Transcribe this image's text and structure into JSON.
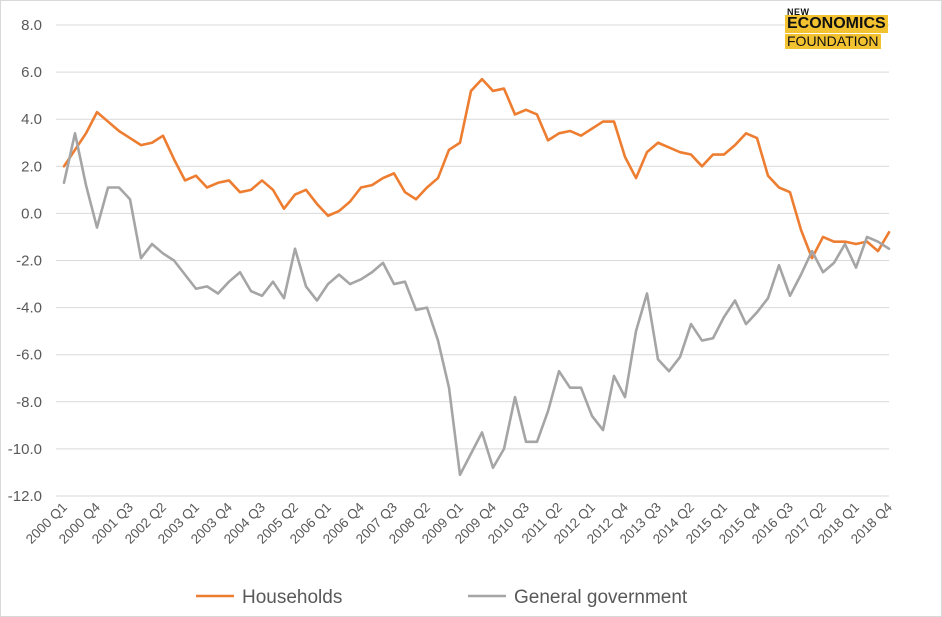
{
  "logo": {
    "line1": "NEW",
    "line2": "ECONOMICS",
    "line3": "FOUNDATION"
  },
  "chart_data": {
    "type": "line",
    "title": "",
    "xlabel": "",
    "ylabel": "",
    "ylim": [
      -12,
      8
    ],
    "yticks": [
      "8.0",
      "6.0",
      "4.0",
      "2.0",
      "0.0",
      "-2.0",
      "-4.0",
      "-6.0",
      "-8.0",
      "-10.0",
      "-12.0"
    ],
    "ytick_values": [
      8,
      6,
      4,
      2,
      0,
      -2,
      -4,
      -6,
      -8,
      -10,
      -12
    ],
    "grid": true,
    "legend_position": "bottom",
    "x": [
      "2000 Q1",
      "2000 Q2",
      "2000 Q3",
      "2000 Q4",
      "2001 Q1",
      "2001 Q2",
      "2001 Q3",
      "2001 Q4",
      "2002 Q1",
      "2002 Q2",
      "2002 Q3",
      "2002 Q4",
      "2003 Q1",
      "2003 Q2",
      "2003 Q3",
      "2003 Q4",
      "2004 Q1",
      "2004 Q2",
      "2004 Q3",
      "2004 Q4",
      "2005 Q1",
      "2005 Q2",
      "2005 Q3",
      "2005 Q4",
      "2006 Q1",
      "2006 Q2",
      "2006 Q3",
      "2006 Q4",
      "2007 Q1",
      "2007 Q2",
      "2007 Q3",
      "2007 Q4",
      "2008 Q1",
      "2008 Q2",
      "2008 Q3",
      "2008 Q4",
      "2009 Q1",
      "2009 Q2",
      "2009 Q3",
      "2009 Q4",
      "2010 Q1",
      "2010 Q2",
      "2010 Q3",
      "2010 Q4",
      "2011 Q1",
      "2011 Q2",
      "2011 Q3",
      "2011 Q4",
      "2012 Q1",
      "2012 Q2",
      "2012 Q3",
      "2012 Q4",
      "2013 Q1",
      "2013 Q2",
      "2013 Q3",
      "2013 Q4",
      "2014 Q1",
      "2014 Q2",
      "2014 Q3",
      "2014 Q4",
      "2015 Q1",
      "2015 Q2",
      "2015 Q3",
      "2015 Q4",
      "2016 Q1",
      "2016 Q2",
      "2016 Q3",
      "2016 Q4",
      "2017 Q1",
      "2017 Q2",
      "2017 Q3",
      "2017 Q4",
      "2018 Q1",
      "2018 Q2",
      "2018 Q3",
      "2018 Q4"
    ],
    "tick_labels": [
      {
        "index": 0,
        "label": "2000 Q1"
      },
      {
        "index": 3,
        "label": "2000 Q4"
      },
      {
        "index": 6,
        "label": "2001 Q3"
      },
      {
        "index": 9,
        "label": "2002 Q2"
      },
      {
        "index": 12,
        "label": "2003 Q1"
      },
      {
        "index": 15,
        "label": "2003 Q4"
      },
      {
        "index": 18,
        "label": "2004 Q3"
      },
      {
        "index": 21,
        "label": "2005 Q2"
      },
      {
        "index": 24,
        "label": "2006 Q1"
      },
      {
        "index": 27,
        "label": "2006 Q4"
      },
      {
        "index": 30,
        "label": "2007 Q3"
      },
      {
        "index": 33,
        "label": "2008 Q2"
      },
      {
        "index": 36,
        "label": "2009 Q1"
      },
      {
        "index": 39,
        "label": "2009 Q4"
      },
      {
        "index": 42,
        "label": "2010 Q3"
      },
      {
        "index": 45,
        "label": "2011 Q2"
      },
      {
        "index": 48,
        "label": "2012 Q1"
      },
      {
        "index": 51,
        "label": "2012 Q4"
      },
      {
        "index": 54,
        "label": "2013 Q3"
      },
      {
        "index": 57,
        "label": "2014 Q2"
      },
      {
        "index": 60,
        "label": "2015 Q1"
      },
      {
        "index": 63,
        "label": "2015 Q4"
      },
      {
        "index": 66,
        "label": "2016 Q3"
      },
      {
        "index": 69,
        "label": "2017 Q2"
      },
      {
        "index": 72,
        "label": "2018 Q1"
      },
      {
        "index": 75,
        "label": "2018 Q4"
      }
    ],
    "series": [
      {
        "name": "Households",
        "color": "#ed7d31",
        "values": [
          2.0,
          2.7,
          3.4,
          4.3,
          3.9,
          3.5,
          3.2,
          2.9,
          3.0,
          3.3,
          2.3,
          1.4,
          1.6,
          1.1,
          1.3,
          1.4,
          0.9,
          1.0,
          1.4,
          1.0,
          0.2,
          0.8,
          1.0,
          0.4,
          -0.1,
          0.1,
          0.5,
          1.1,
          1.2,
          1.5,
          1.7,
          0.9,
          0.6,
          1.1,
          1.5,
          2.7,
          3.0,
          5.2,
          5.7,
          5.2,
          5.3,
          4.2,
          4.4,
          4.2,
          3.1,
          3.4,
          3.5,
          3.3,
          3.6,
          3.9,
          3.9,
          2.4,
          1.5,
          2.6,
          3.0,
          2.8,
          2.6,
          2.5,
          2.0,
          2.5,
          2.5,
          2.9,
          3.4,
          3.2,
          1.6,
          1.1,
          0.9,
          -0.7,
          -1.9,
          -1.0,
          -1.2,
          -1.2,
          -1.3,
          -1.2,
          -1.6,
          -0.8
        ]
      },
      {
        "name": "General government",
        "color": "#a5a5a5",
        "values": [
          1.3,
          3.4,
          1.2,
          -0.6,
          1.1,
          1.1,
          0.6,
          -1.9,
          -1.3,
          -1.7,
          -2.0,
          -2.6,
          -3.2,
          -3.1,
          -3.4,
          -2.9,
          -2.5,
          -3.3,
          -3.5,
          -2.9,
          -3.6,
          -1.5,
          -3.1,
          -3.7,
          -3.0,
          -2.6,
          -3.0,
          -2.8,
          -2.5,
          -2.1,
          -3.0,
          -2.9,
          -4.1,
          -4.0,
          -5.4,
          -7.4,
          -11.1,
          -10.2,
          -9.3,
          -10.8,
          -10.0,
          -7.8,
          -9.7,
          -9.7,
          -8.4,
          -6.7,
          -7.4,
          -7.4,
          -8.6,
          -9.2,
          -6.9,
          -7.8,
          -5.0,
          -3.4,
          -6.2,
          -6.7,
          -6.1,
          -4.7,
          -5.4,
          -5.3,
          -4.4,
          -3.7,
          -4.7,
          -4.2,
          -3.6,
          -2.2,
          -3.5,
          -2.6,
          -1.6,
          -2.5,
          -2.1,
          -1.3,
          -2.3,
          -1.0,
          -1.2,
          -1.5
        ]
      }
    ]
  }
}
